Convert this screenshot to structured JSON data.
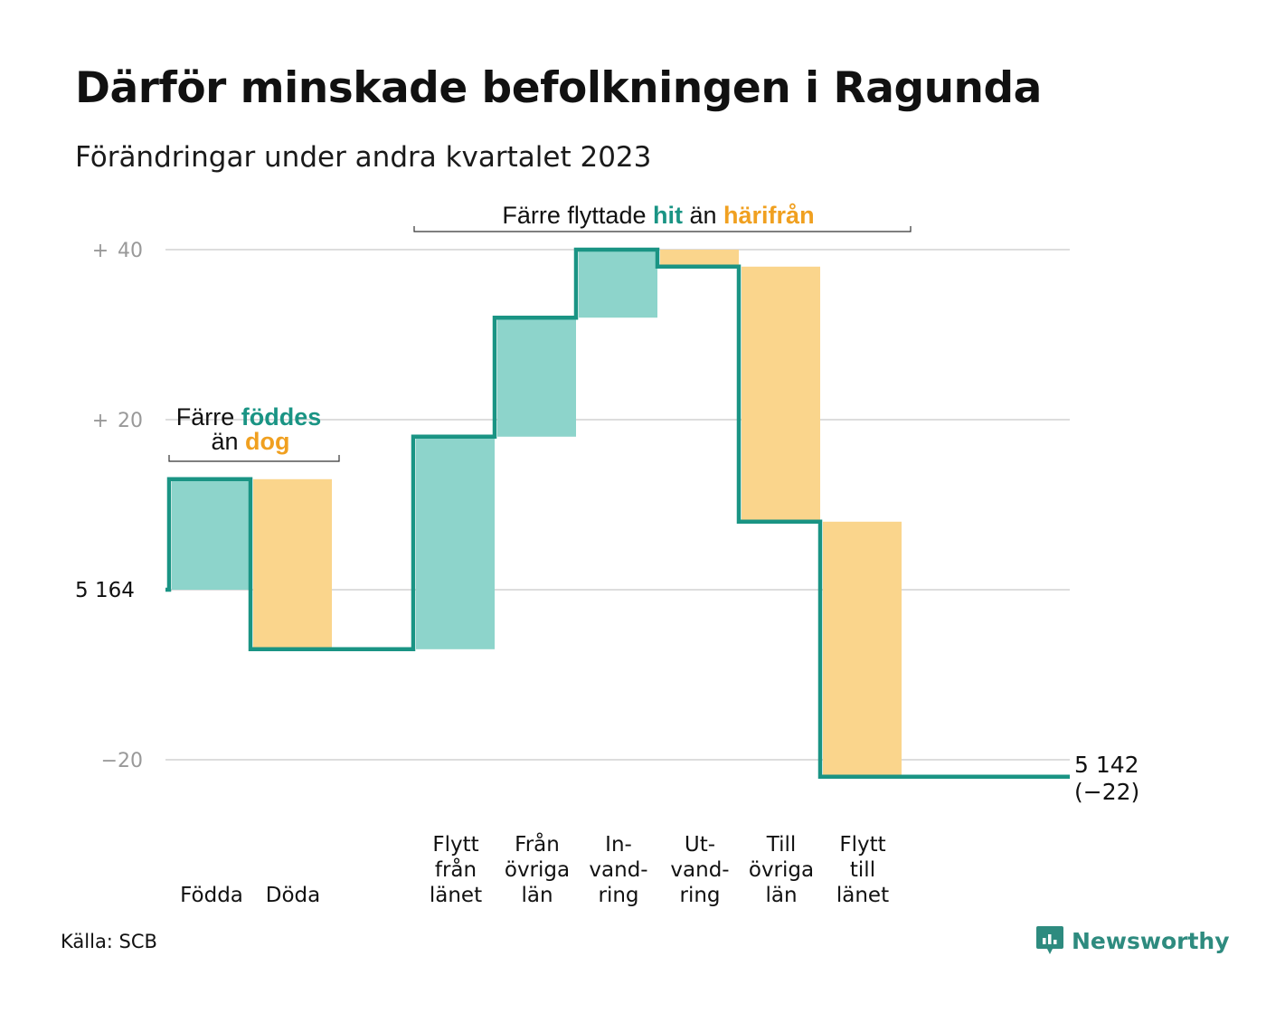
{
  "header": {
    "title": "Därför minskade befolkningen i Ragunda",
    "subtitle": "Förändringar under andra kvartalet 2023"
  },
  "colors": {
    "inflow": "#8dd4cb",
    "outflow": "#fad58c",
    "line": "#1a9484",
    "hit_text": "#1a9484",
    "harifran_text": "#f0a020",
    "grid": "#dddddd",
    "tick": "#999999"
  },
  "annotations": {
    "births": {
      "line1_prefix": "Färre ",
      "line1_highlight": "föddes",
      "line2_prefix": "än ",
      "line2_highlight": "dog"
    },
    "migration": {
      "prefix": "Färre flyttade ",
      "highlight1": "hit",
      "middle": " än ",
      "highlight2": "härifrån"
    }
  },
  "source": "Källa: SCB",
  "brand": {
    "name": "Newsworthy",
    "icon": "newsworthy-logo-icon"
  },
  "chart_data": {
    "type": "waterfall",
    "title": "Därför minskade befolkningen i Ragunda",
    "subtitle": "Förändringar under andra kvartalet 2023",
    "start_value": 5164,
    "start_label": "5  164",
    "end_value": 5142,
    "end_label_line1": "5 142",
    "end_label_line2": "(−22)",
    "ylim": [
      -20,
      40
    ],
    "y_ticks": [
      {
        "value": 40,
        "sign": "+",
        "label": "40"
      },
      {
        "value": 20,
        "sign": "+",
        "label": "20"
      },
      {
        "value": 0,
        "sign": "",
        "label": ""
      },
      {
        "value": -20,
        "sign": "",
        "label": "−20"
      }
    ],
    "grid": true,
    "steps": [
      {
        "label_lines": [
          "Födda"
        ],
        "change": 13,
        "kind": "in"
      },
      {
        "label_lines": [
          "Döda"
        ],
        "change": -20,
        "kind": "out"
      },
      {
        "label_lines": [],
        "change": 0,
        "kind": "gap"
      },
      {
        "label_lines": [
          "Flytt",
          "från",
          "länet"
        ],
        "change": 25,
        "kind": "in"
      },
      {
        "label_lines": [
          "Från",
          "övriga",
          "län"
        ],
        "change": 14,
        "kind": "in"
      },
      {
        "label_lines": [
          "In-",
          "vand-",
          "ring"
        ],
        "change": 8,
        "kind": "in"
      },
      {
        "label_lines": [
          "Ut-",
          "vand-",
          "ring"
        ],
        "change": -2,
        "kind": "out"
      },
      {
        "label_lines": [
          "Till",
          "övriga",
          "län"
        ],
        "change": -30,
        "kind": "out"
      },
      {
        "label_lines": [
          "Flytt",
          "till",
          "länet"
        ],
        "change": -30,
        "kind": "out"
      }
    ]
  }
}
